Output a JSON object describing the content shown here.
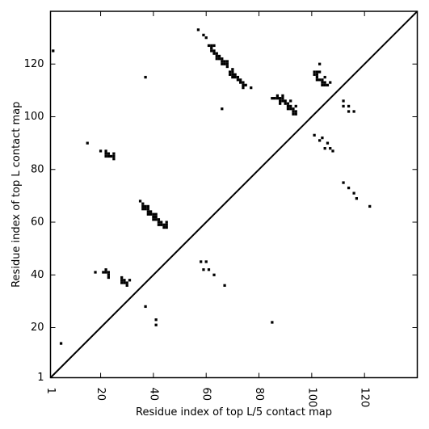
{
  "chart_data": {
    "type": "scatter",
    "title": "",
    "xlabel": "Residue index of top L/5 contact map",
    "ylabel": "Residue index of top L contact map",
    "xlim": [
      1,
      140
    ],
    "ylim": [
      1,
      140
    ],
    "x_ticks": [
      1,
      20,
      40,
      60,
      80,
      100,
      120
    ],
    "y_ticks": [
      1,
      20,
      40,
      60,
      80,
      100,
      120
    ],
    "x_tick_labels": [
      "1",
      "20",
      "40",
      "60",
      "80",
      "100",
      "120"
    ],
    "y_tick_labels": [
      "1",
      "20",
      "40",
      "60",
      "80",
      "100",
      "120"
    ],
    "x_tick_rotation": -90,
    "grid": false,
    "diagonal_line": true,
    "marker": "square",
    "marker_color": "#000000",
    "series": [
      {
        "points": [
          [
            2,
            125
          ],
          [
            5,
            14
          ],
          [
            15,
            90
          ],
          [
            20,
            87
          ],
          [
            18,
            41
          ],
          [
            22,
            87
          ],
          [
            22,
            86
          ],
          [
            22,
            85
          ],
          [
            23,
            86
          ],
          [
            23,
            85
          ],
          [
            24,
            85
          ],
          [
            25,
            86
          ],
          [
            25,
            85
          ],
          [
            25,
            84
          ],
          [
            21,
            41
          ],
          [
            22,
            42
          ],
          [
            22,
            41
          ],
          [
            23,
            41
          ],
          [
            23,
            40
          ],
          [
            23,
            39
          ],
          [
            28,
            39
          ],
          [
            28,
            38
          ],
          [
            28,
            37
          ],
          [
            29,
            38
          ],
          [
            29,
            37
          ],
          [
            30,
            37
          ],
          [
            30,
            36
          ],
          [
            31,
            38
          ],
          [
            35,
            68
          ],
          [
            36,
            67
          ],
          [
            36,
            66
          ],
          [
            36,
            65
          ],
          [
            37,
            66
          ],
          [
            37,
            65
          ],
          [
            38,
            66
          ],
          [
            38,
            65
          ],
          [
            38,
            64
          ],
          [
            38,
            63
          ],
          [
            39,
            64
          ],
          [
            39,
            63
          ],
          [
            40,
            63
          ],
          [
            40,
            62
          ],
          [
            40,
            61
          ],
          [
            41,
            63
          ],
          [
            41,
            62
          ],
          [
            41,
            61
          ],
          [
            42,
            61
          ],
          [
            42,
            60
          ],
          [
            42,
            59
          ],
          [
            43,
            60
          ],
          [
            43,
            59
          ],
          [
            44,
            59
          ],
          [
            44,
            58
          ],
          [
            45,
            60
          ],
          [
            45,
            59
          ],
          [
            45,
            58
          ],
          [
            37,
            115
          ],
          [
            37,
            28
          ],
          [
            41,
            23
          ],
          [
            41,
            21
          ],
          [
            57,
            133
          ],
          [
            59,
            131
          ],
          [
            60,
            130
          ],
          [
            61,
            127
          ],
          [
            62,
            127
          ],
          [
            62,
            126
          ],
          [
            62,
            125
          ],
          [
            63,
            127
          ],
          [
            63,
            125
          ],
          [
            63,
            124
          ],
          [
            64,
            124
          ],
          [
            64,
            123
          ],
          [
            64,
            122
          ],
          [
            65,
            123
          ],
          [
            65,
            122
          ],
          [
            66,
            122
          ],
          [
            66,
            121
          ],
          [
            66,
            120
          ],
          [
            67,
            121
          ],
          [
            67,
            120
          ],
          [
            68,
            121
          ],
          [
            68,
            120
          ],
          [
            68,
            119
          ],
          [
            69,
            117
          ],
          [
            69,
            116
          ],
          [
            70,
            118
          ],
          [
            70,
            117
          ],
          [
            70,
            116
          ],
          [
            70,
            115
          ],
          [
            71,
            116
          ],
          [
            71,
            115
          ],
          [
            72,
            115
          ],
          [
            72,
            114
          ],
          [
            73,
            114
          ],
          [
            73,
            113
          ],
          [
            74,
            113
          ],
          [
            74,
            112
          ],
          [
            74,
            111
          ],
          [
            75,
            112
          ],
          [
            77,
            111
          ],
          [
            66,
            103
          ],
          [
            58,
            45
          ],
          [
            60,
            45
          ],
          [
            59,
            42
          ],
          [
            61,
            42
          ],
          [
            63,
            40
          ],
          [
            67,
            36
          ],
          [
            85,
            107
          ],
          [
            86,
            107
          ],
          [
            87,
            108
          ],
          [
            87,
            107
          ],
          [
            88,
            107
          ],
          [
            88,
            106
          ],
          [
            88,
            105
          ],
          [
            89,
            108
          ],
          [
            89,
            107
          ],
          [
            89,
            106
          ],
          [
            90,
            106
          ],
          [
            90,
            105
          ],
          [
            91,
            105
          ],
          [
            91,
            104
          ],
          [
            91,
            103
          ],
          [
            92,
            106
          ],
          [
            92,
            104
          ],
          [
            92,
            103
          ],
          [
            93,
            103
          ],
          [
            93,
            102
          ],
          [
            93,
            101
          ],
          [
            94,
            104
          ],
          [
            94,
            102
          ],
          [
            94,
            101
          ],
          [
            85,
            22
          ],
          [
            101,
            117
          ],
          [
            101,
            116
          ],
          [
            102,
            117
          ],
          [
            102,
            116
          ],
          [
            102,
            115
          ],
          [
            102,
            114
          ],
          [
            103,
            120
          ],
          [
            103,
            117
          ],
          [
            103,
            114
          ],
          [
            104,
            114
          ],
          [
            104,
            113
          ],
          [
            104,
            112
          ],
          [
            105,
            115
          ],
          [
            105,
            113
          ],
          [
            105,
            112
          ],
          [
            106,
            112
          ],
          [
            107,
            113
          ],
          [
            112,
            106
          ],
          [
            112,
            104
          ],
          [
            114,
            104
          ],
          [
            114,
            102
          ],
          [
            116,
            102
          ],
          [
            101,
            93
          ],
          [
            103,
            91
          ],
          [
            104,
            92
          ],
          [
            105,
            88
          ],
          [
            106,
            90
          ],
          [
            107,
            88
          ],
          [
            108,
            87
          ],
          [
            112,
            75
          ],
          [
            114,
            73
          ],
          [
            116,
            71
          ],
          [
            117,
            69
          ],
          [
            122,
            66
          ]
        ]
      }
    ]
  }
}
